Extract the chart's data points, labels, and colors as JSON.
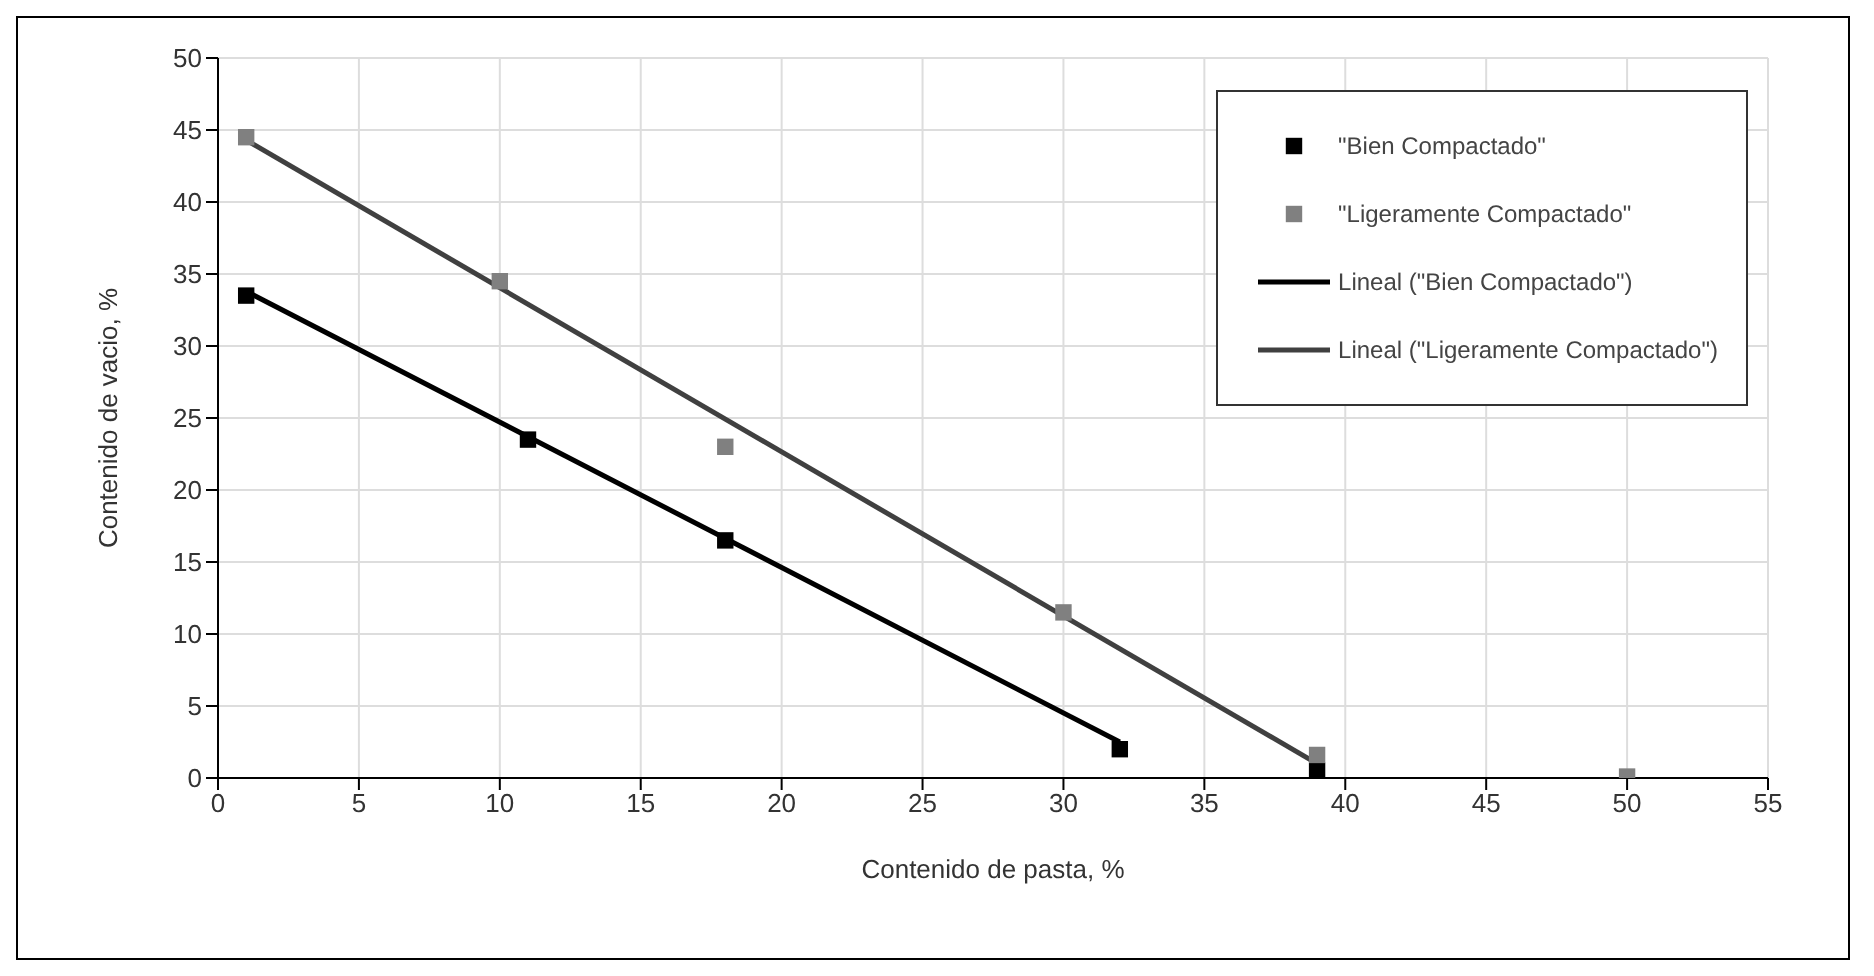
{
  "chart_data": {
    "type": "scatter",
    "xlabel": "Contenido de pasta, %",
    "ylabel": "Contenido de vacio, %",
    "xlim": [
      0,
      55
    ],
    "xticks": [
      0,
      5,
      10,
      15,
      20,
      25,
      30,
      35,
      40,
      45,
      50,
      55
    ],
    "ylim": [
      0,
      50
    ],
    "yticks": [
      0,
      5,
      10,
      15,
      20,
      25,
      30,
      35,
      40,
      45,
      50
    ],
    "grid": true,
    "legend": "top right",
    "marker": "square",
    "series": [
      {
        "name": "\"Bien Compactado\"",
        "color": "#000000",
        "x": [
          1,
          11,
          18,
          32,
          39
        ],
        "values": [
          33.5,
          23.5,
          16.5,
          2,
          0.5
        ]
      },
      {
        "name": "\"Ligeramente Compactado\"",
        "color": "#808080",
        "x": [
          1,
          10,
          18,
          30,
          39,
          50
        ],
        "values": [
          44.5,
          34.5,
          23,
          11.5,
          1.6,
          0.1
        ]
      },
      {
        "name": "Lineal (\"Bien Compactado\")",
        "type": "line",
        "color": "#000000",
        "marker": "none",
        "x": [
          1,
          32
        ],
        "values": [
          33.8,
          2.5
        ]
      },
      {
        "name": "Lineal (\"Ligeramente Compactado\")",
        "type": "line",
        "color": "#404040",
        "marker": "none",
        "x": [
          1,
          39
        ],
        "values": [
          44.3,
          1
        ]
      }
    ]
  }
}
